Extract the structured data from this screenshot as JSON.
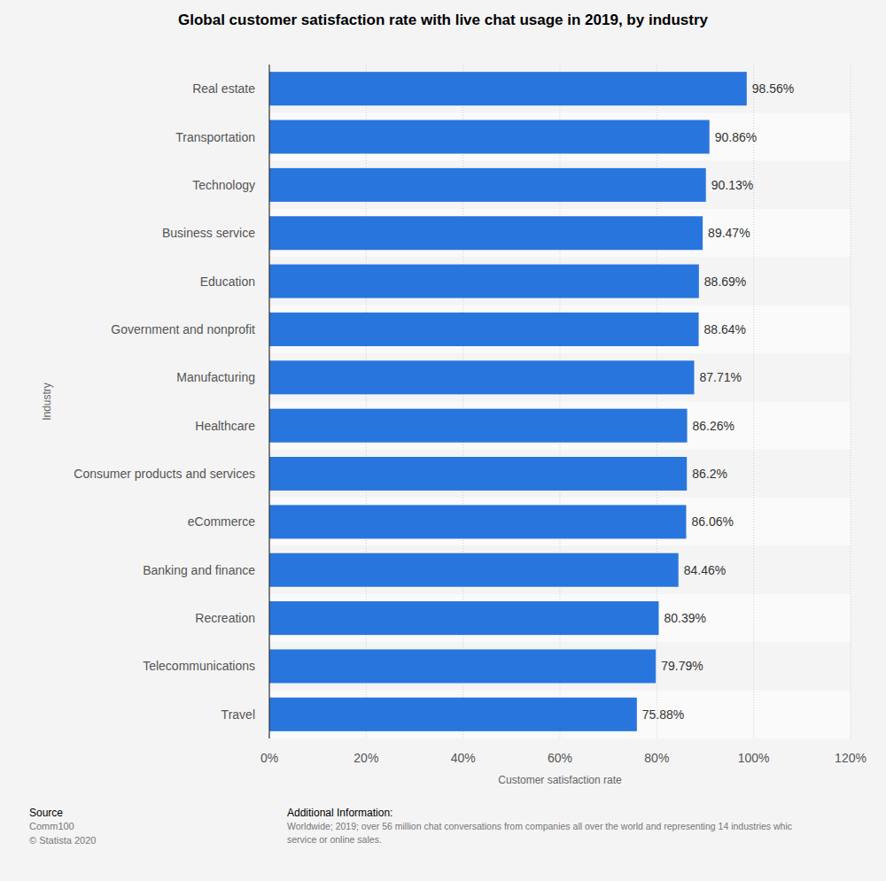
{
  "chart_data": {
    "type": "bar",
    "orientation": "horizontal",
    "title": "Global customer satisfaction rate with live chat usage in 2019, by industry",
    "xlabel": "Customer satisfaction rate",
    "ylabel": "Industry",
    "categories": [
      "Real estate",
      "Transportation",
      "Technology",
      "Business service",
      "Education",
      "Government and nonprofit",
      "Manufacturing",
      "Healthcare",
      "Consumer products and services",
      "eCommerce",
      "Banking and finance",
      "Recreation",
      "Telecommunications",
      "Travel"
    ],
    "values": [
      98.56,
      90.86,
      90.13,
      89.47,
      88.69,
      88.64,
      87.71,
      86.26,
      86.2,
      86.06,
      84.46,
      80.39,
      79.79,
      75.88
    ],
    "value_labels": [
      "98.56%",
      "90.86%",
      "90.13%",
      "89.47%",
      "88.69%",
      "88.64%",
      "87.71%",
      "86.26%",
      "86.2%",
      "86.06%",
      "84.46%",
      "80.39%",
      "79.79%",
      "75.88%"
    ],
    "color": "#2876dd",
    "xlim": [
      0,
      120
    ],
    "xticks": [
      {
        "value": 0,
        "label": "0%"
      },
      {
        "value": 20,
        "label": "20%"
      },
      {
        "value": 40,
        "label": "40%"
      },
      {
        "value": 60,
        "label": "60%"
      },
      {
        "value": 80,
        "label": "80%"
      },
      {
        "value": 100,
        "label": "100%"
      },
      {
        "value": 120,
        "label": "120%"
      }
    ],
    "grid": true,
    "data_labels": true
  },
  "footer": {
    "source_title": "Source",
    "source": "Comm100",
    "copyright": "© Statista 2020",
    "info_title": "Additional Information:",
    "info_lines": [
      "Worldwide; 2019; over 56 million chat conversations from companies all over the world and representing 14 industries whic",
      "service or online sales."
    ]
  }
}
